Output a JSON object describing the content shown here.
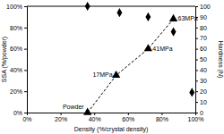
{
  "chart_data": {
    "type": "scatter",
    "x_label": "Density (%/crystal density)",
    "y_label": "SSA (%/powder)",
    "y2_label": "Hardness (N)",
    "xlim": [
      0,
      100
    ],
    "xticks": [
      {
        "value": 0,
        "label": "0%"
      },
      {
        "value": 20,
        "label": "20%"
      },
      {
        "value": 40,
        "label": "40%"
      },
      {
        "value": 60,
        "label": "60%"
      },
      {
        "value": 80,
        "label": "80%"
      },
      {
        "value": 100,
        "label": "100%"
      }
    ],
    "ylim": [
      0,
      100
    ],
    "yticks": [
      {
        "value": 0,
        "label": "0%"
      },
      {
        "value": 20,
        "label": "20%"
      },
      {
        "value": 40,
        "label": "40%"
      },
      {
        "value": 60,
        "label": "60%"
      },
      {
        "value": 80,
        "label": "80%"
      },
      {
        "value": 100,
        "label": "100%"
      }
    ],
    "y2lim": [
      0,
      100
    ],
    "y2ticks": [
      0,
      10,
      20,
      30,
      40,
      50,
      60,
      70,
      80,
      90,
      100
    ],
    "grid": false,
    "series": [
      {
        "x": [
          36,
          55,
          72,
          87,
          98
        ],
        "values": [
          100,
          94,
          90,
          76,
          19
        ],
        "color": "#000000",
        "marker": "diamond"
      },
      {
        "x": [
          36,
          53,
          72,
          87
        ],
        "values": [
          0,
          35,
          60,
          88
        ],
        "axis": "y2",
        "color": "#000000",
        "marker": "triangle",
        "line_style": "dashed",
        "point_labels": [
          "Powder",
          "17MPa",
          "41MPa",
          "63MPa"
        ]
      }
    ]
  }
}
